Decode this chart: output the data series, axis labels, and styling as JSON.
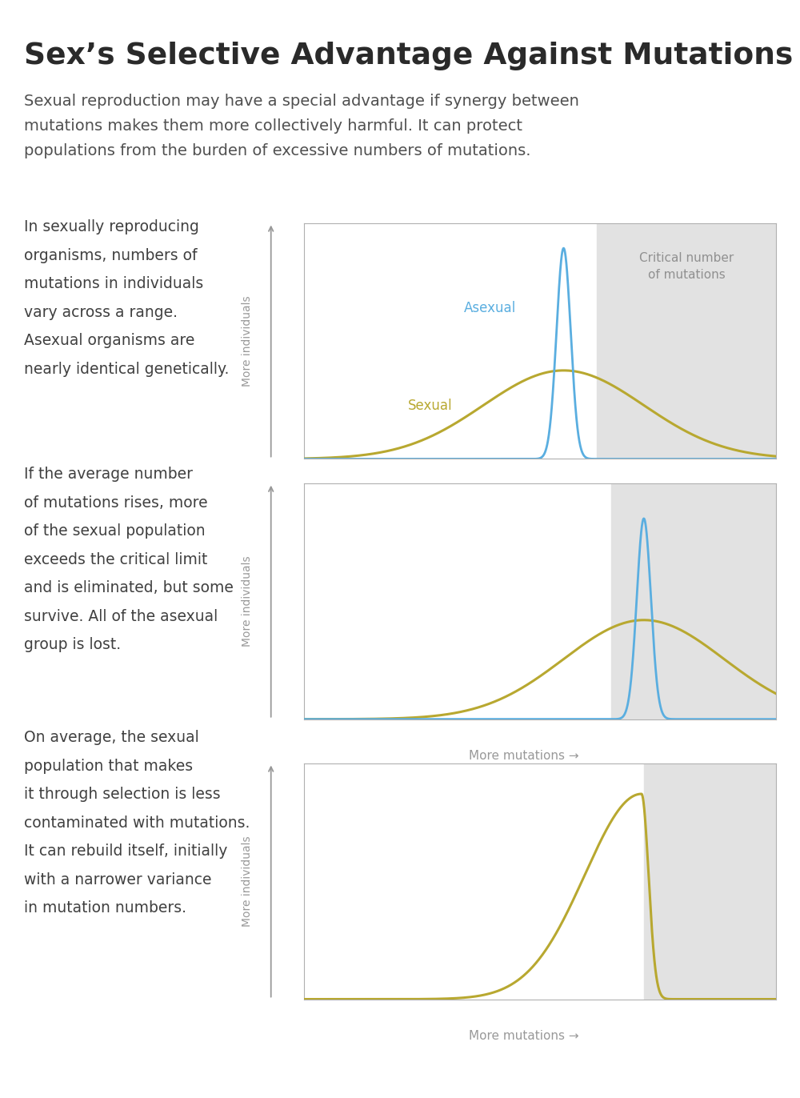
{
  "title": "Sex’s Selective Advantage Against Mutations",
  "subtitle": "Sexual reproduction may have a special advantage if synergy between\nmutations makes them more collectively harmful. It can protect\npopulations from the burden of excessive numbers of mutations.",
  "panel1_text": "In sexually reproducing\norganisms, numbers of\nmutations in individuals\nvary across a range.\nAsexual organisms are\nnearly identical genetically.",
  "panel2_text": "If the average number\nof mutations rises, more\nof the sexual population\nexceeds the critical limit\nand is eliminated, but some\nsurvive. All of the asexual\ngroup is lost.",
  "panel3_text": "On average, the sexual\npopulation that makes\nit through selection is less\ncontaminated with mutations.\nIt can rebuild itself, initially\nwith a narrower variance\nin mutation numbers.",
  "bg_color": "#ffffff",
  "panel_bg": "#ffffff",
  "gray_shade": "#e2e2e2",
  "border_color": "#b0b0b0",
  "title_color": "#2a2a2a",
  "subtitle_color": "#505050",
  "panel_text_color": "#404040",
  "asexual_color": "#5aaee0",
  "sexual_color": "#b8a830",
  "critical_label_color": "#909090",
  "arrow_color": "#999999",
  "axis_label_color": "#999999",
  "top_line_color": "#cccccc"
}
